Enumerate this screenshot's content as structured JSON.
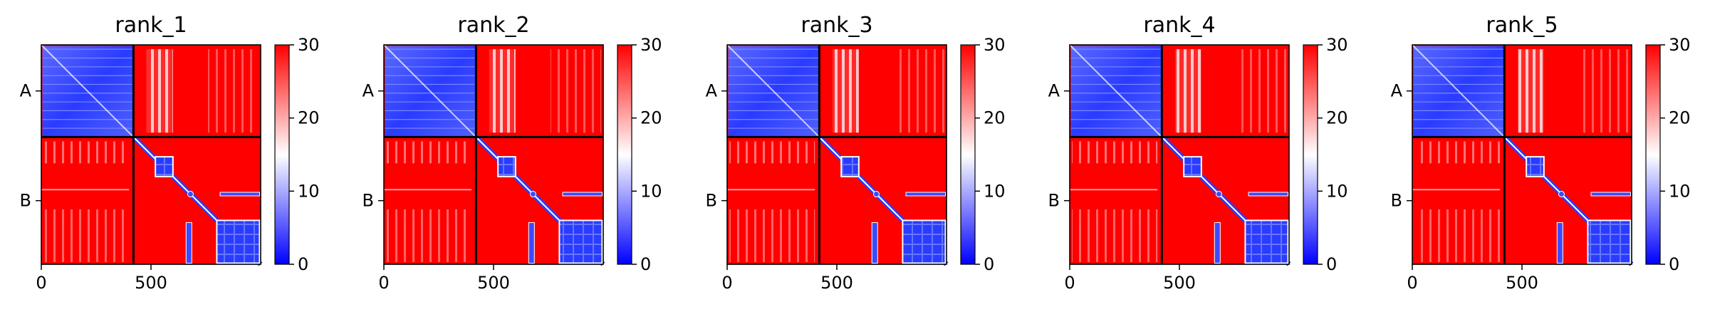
{
  "chart_data": [
    {
      "type": "heatmap",
      "title": "rank_1",
      "chain_labels": [
        "A",
        "B"
      ],
      "chain_lengths": [
        420,
        580
      ],
      "x_ticks": [
        0,
        500
      ],
      "colorbar_ticks": [
        0,
        10,
        20,
        30
      ],
      "clim": [
        0,
        30
      ],
      "colormap": [
        "#0000ff",
        "#ffffff",
        "#ff0000"
      ]
    },
    {
      "type": "heatmap",
      "title": "rank_2",
      "chain_labels": [
        "A",
        "B"
      ],
      "chain_lengths": [
        420,
        580
      ],
      "x_ticks": [
        0,
        500
      ],
      "colorbar_ticks": [
        0,
        10,
        20,
        30
      ],
      "clim": [
        0,
        30
      ],
      "colormap": [
        "#0000ff",
        "#ffffff",
        "#ff0000"
      ]
    },
    {
      "type": "heatmap",
      "title": "rank_3",
      "chain_labels": [
        "A",
        "B"
      ],
      "chain_lengths": [
        420,
        580
      ],
      "x_ticks": [
        0,
        500
      ],
      "colorbar_ticks": [
        0,
        10,
        20,
        30
      ],
      "clim": [
        0,
        30
      ],
      "colormap": [
        "#0000ff",
        "#ffffff",
        "#ff0000"
      ]
    },
    {
      "type": "heatmap",
      "title": "rank_4",
      "chain_labels": [
        "A",
        "B"
      ],
      "chain_lengths": [
        420,
        580
      ],
      "x_ticks": [
        0,
        500
      ],
      "colorbar_ticks": [
        0,
        10,
        20,
        30
      ],
      "clim": [
        0,
        30
      ],
      "colormap": [
        "#0000ff",
        "#ffffff",
        "#ff0000"
      ]
    },
    {
      "type": "heatmap",
      "title": "rank_5",
      "chain_labels": [
        "A",
        "B"
      ],
      "chain_lengths": [
        420,
        580
      ],
      "x_ticks": [
        0,
        500
      ],
      "colorbar_ticks": [
        0,
        10,
        20,
        30
      ],
      "clim": [
        0,
        30
      ],
      "colormap": [
        "#0000ff",
        "#ffffff",
        "#ff0000"
      ]
    }
  ]
}
